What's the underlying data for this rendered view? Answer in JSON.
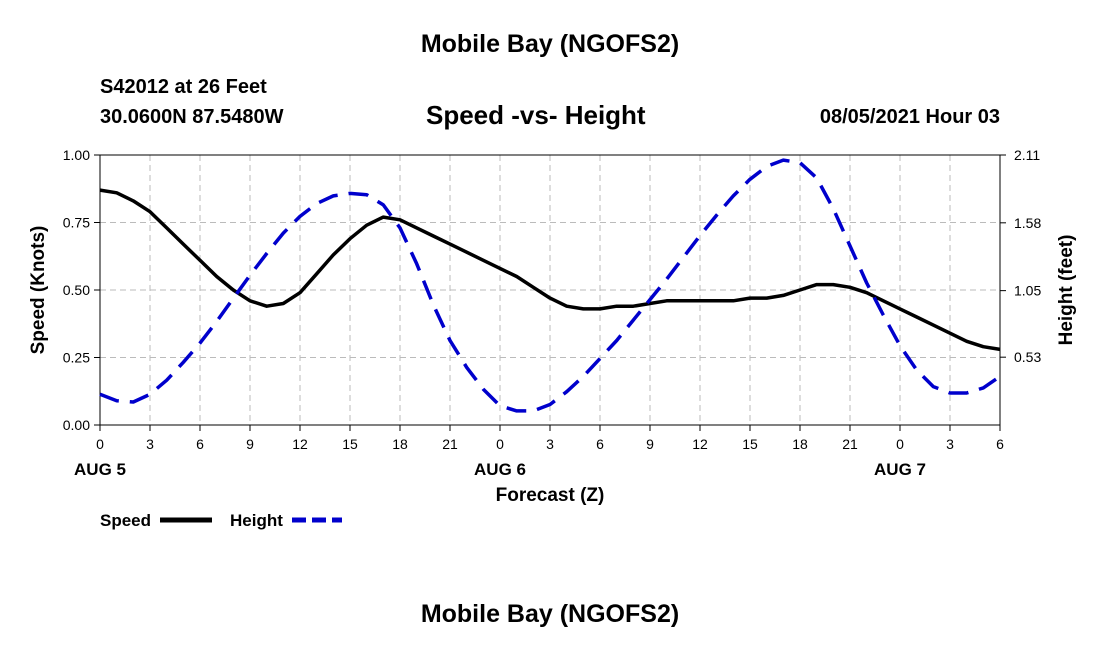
{
  "header": {
    "title": "Mobile Bay (NGOFS2)",
    "station": "S42012 at 26 Feet",
    "coords": "30.0600N  87.5480W",
    "subtitle": "Speed -vs- Height",
    "datetime": "08/05/2021 Hour 03"
  },
  "footer": {
    "title": "Mobile Bay (NGOFS2)"
  },
  "chart_data": {
    "type": "line",
    "title": "Speed -vs- Height",
    "xlabel": "Forecast (Z)",
    "ylabel": "Speed (Knots)",
    "y2label": "Height (feet)",
    "x_ticks": [
      "0",
      "3",
      "6",
      "9",
      "12",
      "15",
      "18",
      "21",
      "0",
      "3",
      "6",
      "9",
      "12",
      "15",
      "18",
      "21",
      "0",
      "3",
      "6"
    ],
    "date_labels": [
      {
        "label": "AUG 5",
        "hour": 12
      },
      {
        "label": "AUG 6",
        "hour": 36
      },
      {
        "label": "AUG 7",
        "hour": 60
      }
    ],
    "xlim": [
      0,
      54
    ],
    "ylim": [
      0,
      1.0
    ],
    "y_ticks": [
      "0.00",
      "0.25",
      "0.50",
      "0.75",
      "1.00"
    ],
    "y2lim": [
      0,
      2.11
    ],
    "y2_ticks": [
      "0.53",
      "1.05",
      "1.58",
      "2.11"
    ],
    "grid": true,
    "legend": [
      {
        "name": "Speed",
        "color": "#000000",
        "style": "solid"
      },
      {
        "name": "Height",
        "color": "#0000cc",
        "style": "dashed"
      }
    ],
    "series": [
      {
        "name": "Speed",
        "axis": "left",
        "color": "#000000",
        "x": [
          0,
          1,
          2,
          3,
          4,
          5,
          6,
          7,
          8,
          9,
          10,
          11,
          12,
          13,
          14,
          15,
          16,
          17,
          18,
          19,
          20,
          21,
          22,
          23,
          24,
          25,
          26,
          27,
          28,
          29,
          30,
          31,
          32,
          33,
          34,
          35,
          36,
          37,
          38,
          39,
          40,
          41,
          42,
          43,
          44,
          45,
          46,
          47,
          48,
          49,
          50,
          51,
          52,
          53,
          54
        ],
        "values": [
          0.87,
          0.86,
          0.83,
          0.79,
          0.73,
          0.67,
          0.61,
          0.55,
          0.5,
          0.46,
          0.44,
          0.45,
          0.49,
          0.56,
          0.63,
          0.69,
          0.74,
          0.77,
          0.76,
          0.73,
          0.7,
          0.67,
          0.64,
          0.61,
          0.58,
          0.55,
          0.51,
          0.47,
          0.44,
          0.43,
          0.43,
          0.44,
          0.44,
          0.45,
          0.46,
          0.46,
          0.46,
          0.46,
          0.46,
          0.47,
          0.47,
          0.48,
          0.5,
          0.52,
          0.52,
          0.51,
          0.49,
          0.46,
          0.43,
          0.4,
          0.37,
          0.34,
          0.31,
          0.29,
          0.28
        ]
      },
      {
        "name": "Height",
        "axis": "right",
        "color": "#0000cc",
        "x": [
          0,
          1,
          2,
          3,
          4,
          5,
          6,
          7,
          8,
          9,
          10,
          11,
          12,
          13,
          14,
          15,
          16,
          17,
          18,
          19,
          20,
          21,
          22,
          23,
          24,
          25,
          26,
          27,
          28,
          29,
          30,
          31,
          32,
          33,
          34,
          35,
          36,
          37,
          38,
          39,
          40,
          41,
          42,
          43,
          44,
          45,
          46,
          47,
          48,
          49,
          50,
          51,
          52,
          53,
          54
        ],
        "values": [
          0.24,
          0.19,
          0.18,
          0.24,
          0.35,
          0.49,
          0.64,
          0.81,
          0.99,
          1.17,
          1.34,
          1.5,
          1.63,
          1.73,
          1.79,
          1.81,
          1.8,
          1.72,
          1.54,
          1.26,
          0.94,
          0.66,
          0.45,
          0.28,
          0.15,
          0.11,
          0.11,
          0.16,
          0.26,
          0.38,
          0.52,
          0.66,
          0.82,
          0.98,
          1.14,
          1.31,
          1.48,
          1.64,
          1.79,
          1.92,
          2.02,
          2.07,
          2.05,
          1.93,
          1.69,
          1.4,
          1.11,
          0.86,
          0.62,
          0.43,
          0.3,
          0.25,
          0.25,
          0.29,
          0.38
        ]
      }
    ]
  }
}
